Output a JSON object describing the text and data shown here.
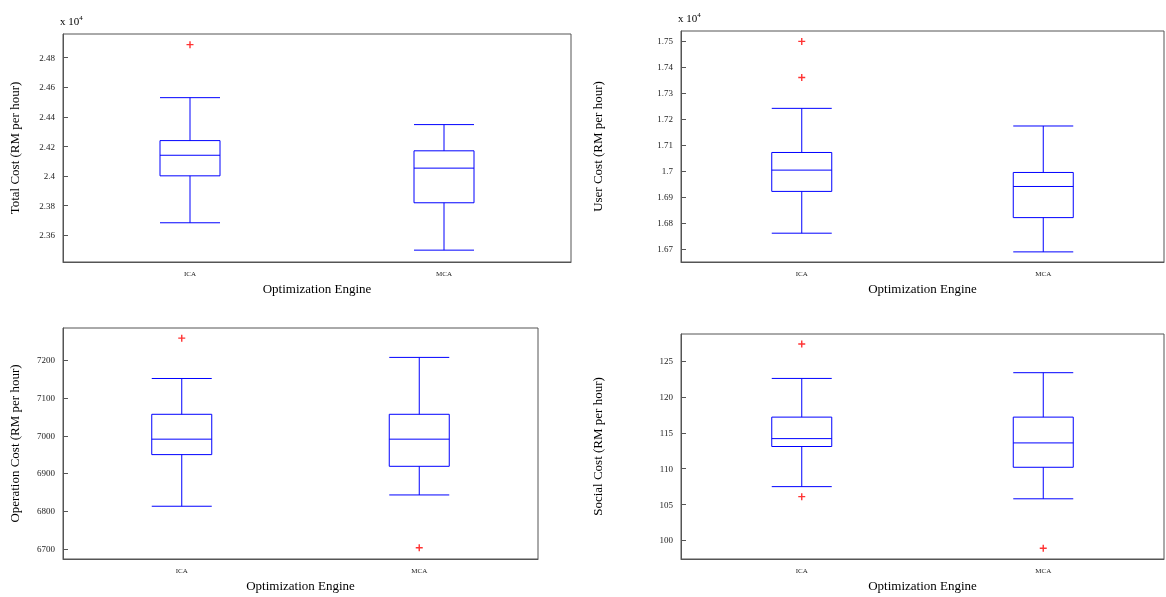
{
  "chart_data": [
    {
      "type": "box",
      "ylabel": "Total Cost (RM per hour)",
      "xlabel": "Optimization Engine",
      "annotations": [
        "x 10$^{4}$"
      ],
      "categories": [
        "ICA",
        "MCA"
      ],
      "ylim": [
        2.342,
        2.496
      ],
      "yticks": [
        2.36,
        2.38,
        2.4,
        2.42,
        2.44,
        2.46,
        2.48
      ],
      "grid": false,
      "series": [
        {
          "color": "#0000ff",
          "boxes": [
            {
              "low": 2.3685,
              "q1": 2.4002,
              "median": 2.4141,
              "q3": 2.424,
              "high": 2.453
            },
            {
              "low": 2.35,
              "q1": 2.382,
              "median": 2.4054,
              "q3": 2.4171,
              "high": 2.4348
            }
          ]
        },
        {
          "type": "scatter",
          "color": "#ff0000",
          "x": [
            "ICA"
          ],
          "values": [
            2.4888
          ]
        }
      ]
    },
    {
      "type": "box",
      "ylabel": "User Cost (RM per hour)",
      "xlabel": "Optimization Engine",
      "annotations": [
        "x 10$^{4}$"
      ],
      "categories": [
        "ICA",
        "MCA"
      ],
      "ylim": [
        1.665,
        1.754
      ],
      "yticks": [
        1.67,
        1.68,
        1.69,
        1.7,
        1.71,
        1.72,
        1.73,
        1.74,
        1.75
      ],
      "grid": false,
      "series": [
        {
          "color": "#0000ff",
          "boxes": [
            {
              "low": 1.6761,
              "q1": 1.6922,
              "median": 1.7004,
              "q3": 1.7072,
              "high": 1.7242
            },
            {
              "low": 1.6689,
              "q1": 1.6821,
              "median": 1.6941,
              "q3": 1.6995,
              "high": 1.7174
            }
          ]
        },
        {
          "type": "scatter",
          "color": "#ff0000",
          "x": [
            "ICA",
            "ICA"
          ],
          "values": [
            1.7361,
            1.75
          ]
        }
      ]
    },
    {
      "type": "box",
      "ylabel": "Operation Cost (RM per hour)",
      "xlabel": "Optimization Engine",
      "categories": [
        "ICA",
        "MCA"
      ],
      "ylim": [
        6673,
        7286
      ],
      "yticks": [
        6700,
        6800,
        6900,
        7000,
        7100,
        7200
      ],
      "grid": false,
      "series": [
        {
          "color": "#0000ff",
          "boxes": [
            {
              "low": 6813,
              "q1": 6950,
              "median": 6991,
              "q3": 7057,
              "high": 7152
            },
            {
              "low": 6843,
              "q1": 6919,
              "median": 6991,
              "q3": 7057,
              "high": 7208
            }
          ]
        },
        {
          "type": "scatter",
          "color": "#ff0000",
          "x": [
            "ICA",
            "MCA"
          ],
          "values": [
            7259,
            6703
          ]
        }
      ]
    },
    {
      "type": "box",
      "ylabel": "Social Cost (RM per hour)",
      "xlabel": "Optimization Engine",
      "categories": [
        "ICA",
        "MCA"
      ],
      "ylim": [
        97.4,
        128.8
      ],
      "yticks": [
        100,
        105,
        110,
        115,
        120,
        125
      ],
      "grid": false,
      "series": [
        {
          "color": "#0000ff",
          "boxes": [
            {
              "low": 107.5,
              "q1": 113.1,
              "median": 114.2,
              "q3": 117.2,
              "high": 122.6
            },
            {
              "low": 105.8,
              "q1": 110.2,
              "median": 113.6,
              "q3": 117.2,
              "high": 123.4
            }
          ]
        },
        {
          "type": "scatter",
          "color": "#ff0000",
          "x": [
            "ICA",
            "ICA",
            "MCA"
          ],
          "values": [
            127.4,
            106.1,
            98.9
          ]
        }
      ]
    }
  ]
}
